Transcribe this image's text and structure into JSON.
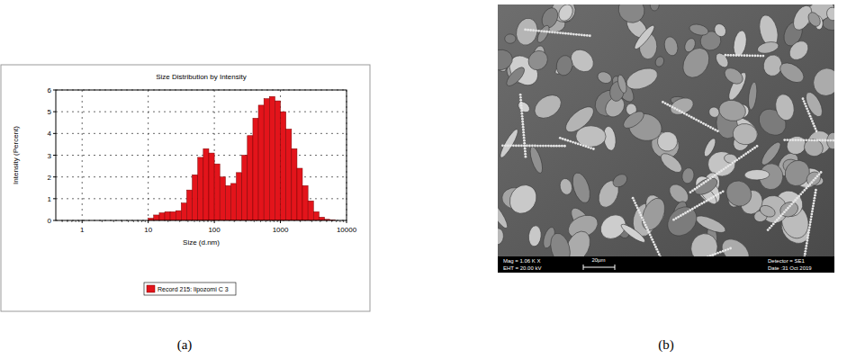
{
  "chart_data": {
    "type": "bar",
    "title": "Size Distribution by Intensity",
    "x_label": "Size (d.nm)",
    "y_label": "Intensity (Percent)",
    "bins": [
      8.25,
      10,
      12.1,
      14.7,
      17.8,
      21.5,
      26.1,
      31.6,
      38.3,
      46.4,
      56.2,
      68.1,
      82.5,
      100,
      121,
      147,
      178,
      215,
      261,
      316,
      383,
      464,
      562,
      681,
      825,
      1000,
      1210,
      1470,
      1780,
      2150,
      2610,
      3160,
      3830,
      4640,
      5620,
      6810
    ],
    "series": [
      {
        "name": "Record 215: lipozomi C 3",
        "color": "#e3141b",
        "values": [
          0,
          0.1,
          0.25,
          0.35,
          0.4,
          0.4,
          0.45,
          0.8,
          1.4,
          2.1,
          2.9,
          3.3,
          3.1,
          2.6,
          2.0,
          1.6,
          1.7,
          2.2,
          3.0,
          3.9,
          4.7,
          5.3,
          5.6,
          5.7,
          5.5,
          5.0,
          4.2,
          3.3,
          2.4,
          1.6,
          0.9,
          0.4,
          0.15,
          0.05,
          0.02
        ]
      }
    ],
    "xlim": [
      0.4,
      10000
    ],
    "xticks": [
      1,
      10,
      100,
      1000,
      10000
    ],
    "ylim": [
      0,
      6
    ],
    "yticks": [
      0,
      1,
      2,
      3,
      4,
      5,
      6
    ],
    "log": "x",
    "grid": true,
    "legend": "bottom"
  },
  "sem_image": {
    "mag": "Mag = 1.06 K X",
    "eht": "EHT = 20.00 kV",
    "scale_bar": "20µm",
    "detector": "Detector = SE1",
    "date": "Date :31 Oct 2019"
  },
  "captions": [
    "(a)",
    "(b)"
  ]
}
